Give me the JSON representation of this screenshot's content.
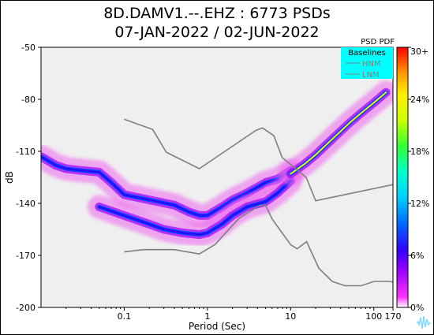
{
  "title_line1": "8D.DAMV1.--.EHZ : 6773 PSDs",
  "title_line2": "07-JAN-2022 / 02-JUN-2022",
  "colors": {
    "plot_background": "#efefef",
    "reference_line": "#7f7f7f",
    "legend_box": "#00ffff",
    "noise_model_legend": "#808080"
  },
  "logo_icon": "waveform-logo-icon",
  "chart_data": {
    "type": "heatmap",
    "title": "8D.DAMV1.--.EHZ : 6773 PSDs\n07-JAN-2022 / 02-JUN-2022",
    "xlabel": "Period (Sec)",
    "ylabel": "dB",
    "x_scale": "log",
    "xlim": [
      0.01,
      170
    ],
    "ylim": [
      -200,
      -50
    ],
    "x_ticks": [
      0.1,
      1,
      10,
      100,
      170
    ],
    "x_tick_labels": [
      "0.1",
      "1",
      "10",
      "100",
      "170"
    ],
    "y_ticks": [
      -50,
      -80,
      -110,
      -140,
      -170,
      -200
    ],
    "y_tick_labels": [
      "-50",
      "-80",
      "-110",
      "-140",
      "-170",
      "-200"
    ],
    "colorbar": {
      "label": "PSD PDF",
      "ticks": [
        0,
        6,
        12,
        18,
        24,
        30
      ],
      "tick_labels": [
        "0%",
        "6%",
        "12%",
        "18%",
        "24%",
        "30+"
      ]
    },
    "legend": {
      "title": "Baselines",
      "entries": [
        "HNM",
        "LNM"
      ],
      "placement": "top-right"
    },
    "pdf_ridges": [
      {
        "probability_percent": 7,
        "points": [
          [
            0.01,
            -113
          ],
          [
            0.015,
            -118
          ],
          [
            0.02,
            -120
          ],
          [
            0.03,
            -121
          ],
          [
            0.05,
            -122
          ],
          [
            0.07,
            -128
          ],
          [
            0.1,
            -135
          ],
          [
            0.2,
            -138
          ],
          [
            0.4,
            -141
          ],
          [
            0.6,
            -145
          ],
          [
            0.8,
            -147
          ],
          [
            1.0,
            -147
          ],
          [
            1.5,
            -142
          ],
          [
            2,
            -138
          ],
          [
            3,
            -134
          ],
          [
            5,
            -128
          ],
          [
            7,
            -126
          ],
          [
            10,
            -121
          ]
        ]
      },
      {
        "probability_percent": 7,
        "points": [
          [
            0.05,
            -142
          ],
          [
            0.1,
            -147
          ],
          [
            0.2,
            -152
          ],
          [
            0.3,
            -155
          ],
          [
            0.5,
            -157
          ],
          [
            0.8,
            -158
          ],
          [
            1.0,
            -157
          ],
          [
            1.5,
            -152
          ],
          [
            2,
            -147
          ],
          [
            3,
            -142
          ],
          [
            5,
            -139
          ],
          [
            7,
            -134
          ],
          [
            10,
            -127
          ]
        ]
      },
      {
        "probability_percent": 24,
        "points": [
          [
            10,
            -123
          ],
          [
            15,
            -117
          ],
          [
            20,
            -112
          ],
          [
            30,
            -104
          ],
          [
            50,
            -94
          ],
          [
            70,
            -88
          ],
          [
            100,
            -82
          ],
          [
            140,
            -76
          ]
        ]
      }
    ],
    "nhnm": {
      "name": "HNM",
      "points": [
        [
          0.1,
          -91.5
        ],
        [
          0.22,
          -97.4
        ],
        [
          0.32,
          -110.5
        ],
        [
          0.8,
          -120
        ],
        [
          3.8,
          -98
        ],
        [
          4.6,
          -96.5
        ],
        [
          6.3,
          -101
        ],
        [
          7.9,
          -113.5
        ],
        [
          15.4,
          -125
        ],
        [
          20,
          -138.5
        ],
        [
          354.8,
          -126
        ]
      ]
    },
    "nlnm": {
      "name": "LNM",
      "points": [
        [
          0.1,
          -168
        ],
        [
          0.17,
          -166.7
        ],
        [
          0.4,
          -166.7
        ],
        [
          0.8,
          -169.2
        ],
        [
          1.24,
          -163.7
        ],
        [
          2.4,
          -148.6
        ],
        [
          4.3,
          -141.1
        ],
        [
          5,
          -141.1
        ],
        [
          6,
          -149
        ],
        [
          10,
          -163.8
        ],
        [
          12,
          -166.2
        ],
        [
          15.6,
          -162.1
        ],
        [
          21.9,
          -177.5
        ],
        [
          31.6,
          -185
        ],
        [
          45,
          -187.5
        ],
        [
          70,
          -187.5
        ],
        [
          101,
          -185
        ],
        [
          154,
          -185
        ],
        [
          328,
          -187.5
        ]
      ]
    }
  }
}
